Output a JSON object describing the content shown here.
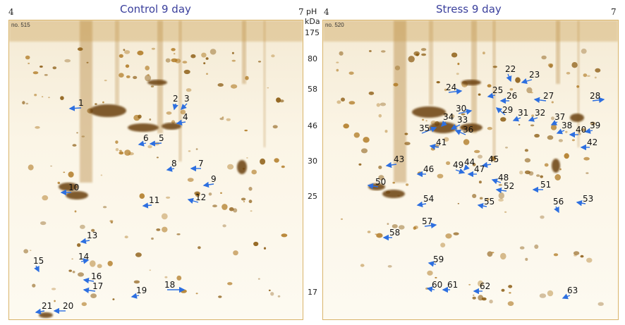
{
  "panels": [
    {
      "title": "Control 9 day",
      "ph_low": "4",
      "ph_high": "7",
      "gel_no": "no. 515",
      "spot_labels": [
        "1",
        "2",
        "3",
        "4",
        "5",
        "6",
        "7",
        "8",
        "9",
        "10",
        "11",
        "12",
        "13",
        "14",
        "15",
        "16",
        "17",
        "18",
        "19",
        "20",
        "21"
      ]
    },
    {
      "title": "Stress 9 day",
      "ph_low": "4",
      "ph_high": "7",
      "gel_no": "no. 520",
      "spot_labels": [
        "22",
        "23",
        "24",
        "25",
        "26",
        "27",
        "28",
        "29",
        "30",
        "31",
        "32",
        "33",
        "34",
        "35",
        "36",
        "37",
        "38",
        "39",
        "40",
        "41",
        "42",
        "43",
        "44",
        "45",
        "46",
        "47",
        "48",
        "49",
        "50",
        "51",
        "52",
        "53",
        "54",
        "55",
        "56",
        "57",
        "58",
        "59",
        "60",
        "61",
        "62",
        "63"
      ]
    }
  ],
  "ph_label": "pH",
  "mw_unit": "kDa",
  "mw_markers": [
    "175",
    "80",
    "58",
    "46",
    "30",
    "25",
    "17"
  ],
  "colors": {
    "title": "#3a3f9c",
    "arrow": "#2d6fe0",
    "spot": "#8a5a10"
  }
}
